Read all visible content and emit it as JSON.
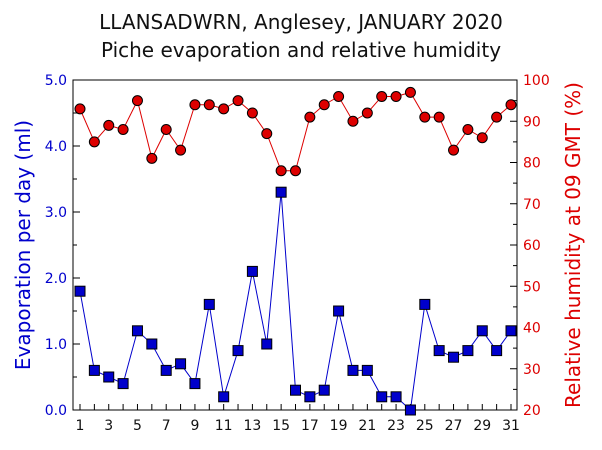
{
  "chart_data": {
    "type": "line",
    "title": "LLANSADWRN, Anglesey, JANUARY 2020",
    "subtitle": "Piche evaporation and relative humidity",
    "x": [
      1,
      2,
      3,
      4,
      5,
      6,
      7,
      8,
      9,
      10,
      11,
      12,
      13,
      14,
      15,
      16,
      17,
      18,
      19,
      20,
      21,
      22,
      23,
      24,
      25,
      26,
      27,
      28,
      29,
      30,
      31
    ],
    "xlim": [
      1,
      31
    ],
    "x_tick_labels": [
      "1",
      "3",
      "5",
      "7",
      "9",
      "11",
      "13",
      "15",
      "17",
      "19",
      "21",
      "23",
      "25",
      "27",
      "29",
      "31"
    ],
    "ylabel_left": "Evaporation per day (ml)",
    "ylabel_right": "Relative humidity at 09 GMT (%)",
    "ylim_left": [
      0,
      5
    ],
    "ylim_right": [
      20,
      100
    ],
    "y_tick_labels_left": [
      "0.0",
      "1.0",
      "2.0",
      "3.0",
      "4.0",
      "5.0"
    ],
    "y_tick_labels_right": [
      "20",
      "30",
      "40",
      "50",
      "60",
      "70",
      "80",
      "90",
      "100"
    ],
    "grid": false,
    "series": [
      {
        "axis": "left",
        "color": "#0000cc",
        "marker": "square",
        "values": [
          1.8,
          0.6,
          0.5,
          0.4,
          1.2,
          1.0,
          0.6,
          0.7,
          0.4,
          1.6,
          0.2,
          0.9,
          2.1,
          1.0,
          3.3,
          0.3,
          0.2,
          0.3,
          1.5,
          0.6,
          0.6,
          0.2,
          0.2,
          0.0,
          1.6,
          0.9,
          0.8,
          0.9,
          1.2,
          0.9,
          1.2
        ]
      },
      {
        "axis": "right",
        "color": "#dd0000",
        "marker": "circle",
        "values": [
          93,
          85,
          89,
          88,
          95,
          81,
          88,
          83,
          94,
          94,
          93,
          95,
          92,
          87,
          78,
          78,
          91,
          94,
          96,
          90,
          92,
          96,
          96,
          97,
          91,
          91,
          83,
          88,
          86,
          91,
          94
        ]
      }
    ]
  }
}
